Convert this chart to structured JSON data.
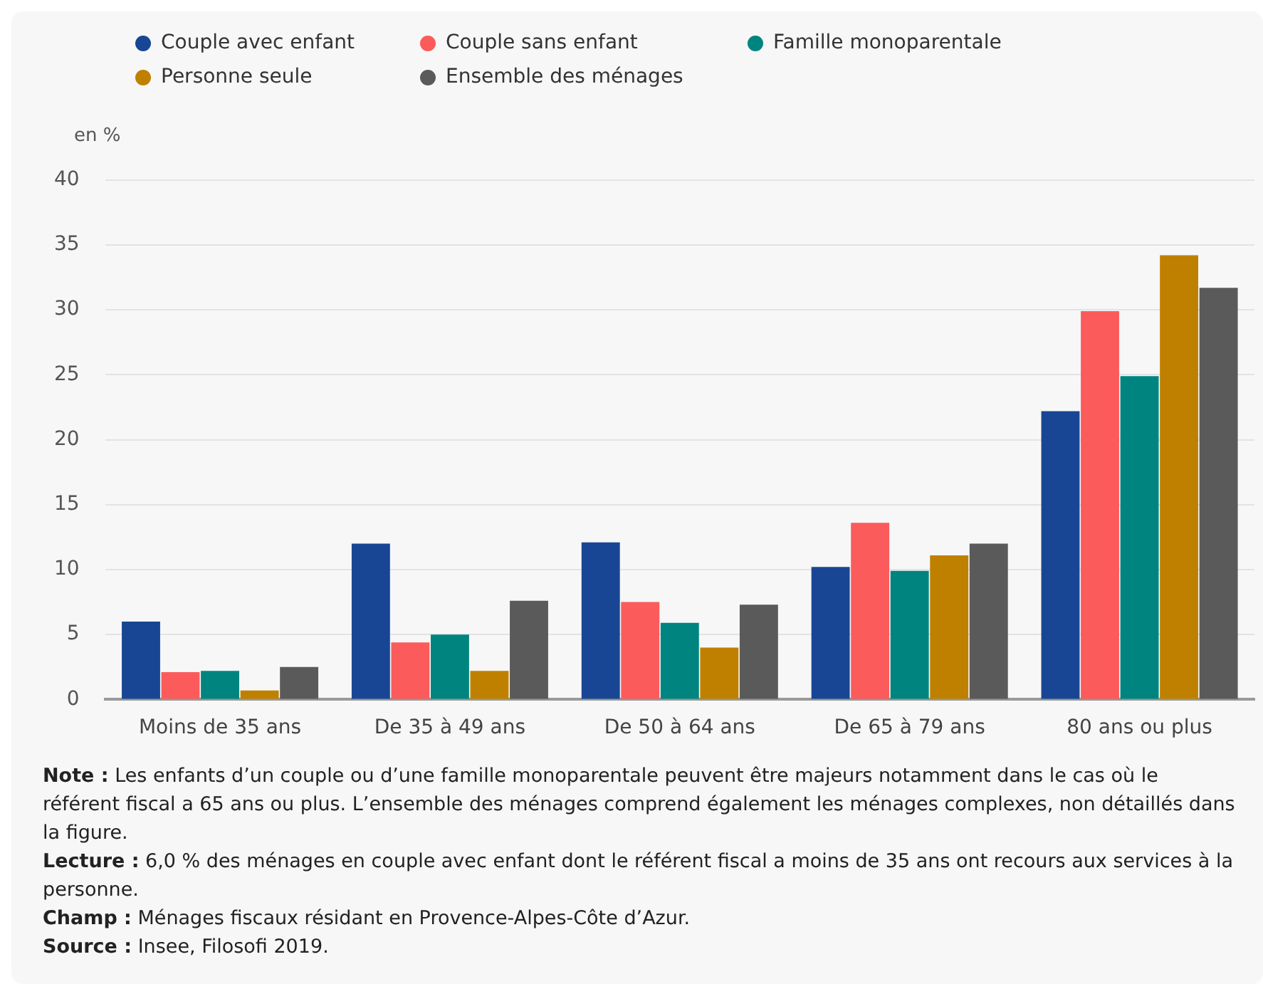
{
  "chart_data": {
    "type": "bar",
    "ylabel": "en %",
    "categories": [
      "Moins de 35 ans",
      "De 35 à 49 ans",
      "De 50 à 64 ans",
      "De 65 à 79 ans",
      "80 ans ou plus"
    ],
    "series": [
      {
        "name": "Couple avec enfant",
        "color": "#184694",
        "values": [
          6.0,
          12.0,
          12.1,
          10.2,
          22.2
        ]
      },
      {
        "name": "Couple sans enfant",
        "color": "#fb5b5b",
        "values": [
          2.1,
          4.4,
          7.5,
          13.6,
          29.9
        ]
      },
      {
        "name": "Famille monoparentale",
        "color": "#008480",
        "values": [
          2.2,
          5.0,
          5.9,
          9.9,
          24.9
        ]
      },
      {
        "name": "Personne seule",
        "color": "#bf8000",
        "values": [
          0.7,
          2.2,
          4.0,
          11.1,
          34.2
        ]
      },
      {
        "name": "Ensemble des ménages",
        "color": "#5a5a5a",
        "values": [
          2.5,
          7.6,
          7.3,
          12.0,
          31.7
        ]
      }
    ],
    "ylim": [
      0,
      40
    ],
    "yticks": [
      0,
      5,
      10,
      15,
      20,
      25,
      30,
      35,
      40
    ],
    "grid": "y",
    "legend": "top",
    "annotations": [
      "Note : Les enfants d’un couple ou d’une famille monoparentale peuvent être majeurs notamment dans le cas où le référent fiscal a 65 ans ou plus. L’ensemble des ménages comprend également les ménages complexes, non détaillés dans la figure.",
      "Lecture : 6,0 % des ménages en couple avec enfant dont le référent fiscal a moins de 35 ans ont recours aux services à la personne.",
      "Champ : Ménages fiscaux résidant en Provence-Alpes-Côte d’Azur.",
      "Source : Insee, Filosofi 2019."
    ]
  }
}
